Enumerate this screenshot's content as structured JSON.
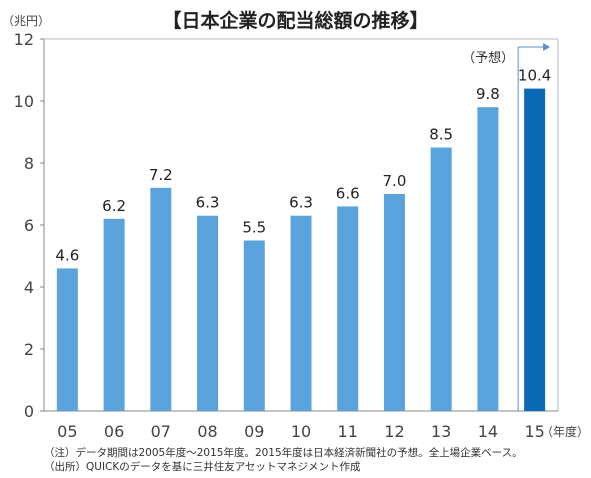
{
  "chart_data": {
    "type": "bar",
    "title": "【日本企業の配当総額の推移】",
    "ylabel": "（兆円）",
    "xlabel": "（年度）",
    "ylim": [
      0,
      12
    ],
    "yticks": [
      0,
      2,
      4,
      6,
      8,
      10,
      12
    ],
    "categories": [
      "05",
      "06",
      "07",
      "08",
      "09",
      "10",
      "11",
      "12",
      "13",
      "14",
      "15"
    ],
    "values": [
      4.6,
      6.2,
      7.2,
      6.3,
      5.5,
      6.3,
      6.6,
      7.0,
      8.5,
      9.8,
      10.4
    ],
    "value_labels": [
      "4.6",
      "6.2",
      "7.2",
      "6.3",
      "5.5",
      "6.3",
      "6.6",
      "7.0",
      "8.5",
      "9.8",
      "10.4"
    ],
    "grid": false,
    "colors": {
      "actual": "#5ba3dc",
      "forecast": "#0a68b4",
      "bracket": "#5b8fc7",
      "axis": "#888888"
    },
    "forecast": {
      "category": "15",
      "label": "（予想）"
    }
  },
  "notes": {
    "note": "（注）データ期間は2005年度～2015年度。2015年度は日本経済新聞社の予想。全上場企業ベース。",
    "source": "（出所）QUICKのデータを基に三井住友アセットマネジメント作成"
  }
}
